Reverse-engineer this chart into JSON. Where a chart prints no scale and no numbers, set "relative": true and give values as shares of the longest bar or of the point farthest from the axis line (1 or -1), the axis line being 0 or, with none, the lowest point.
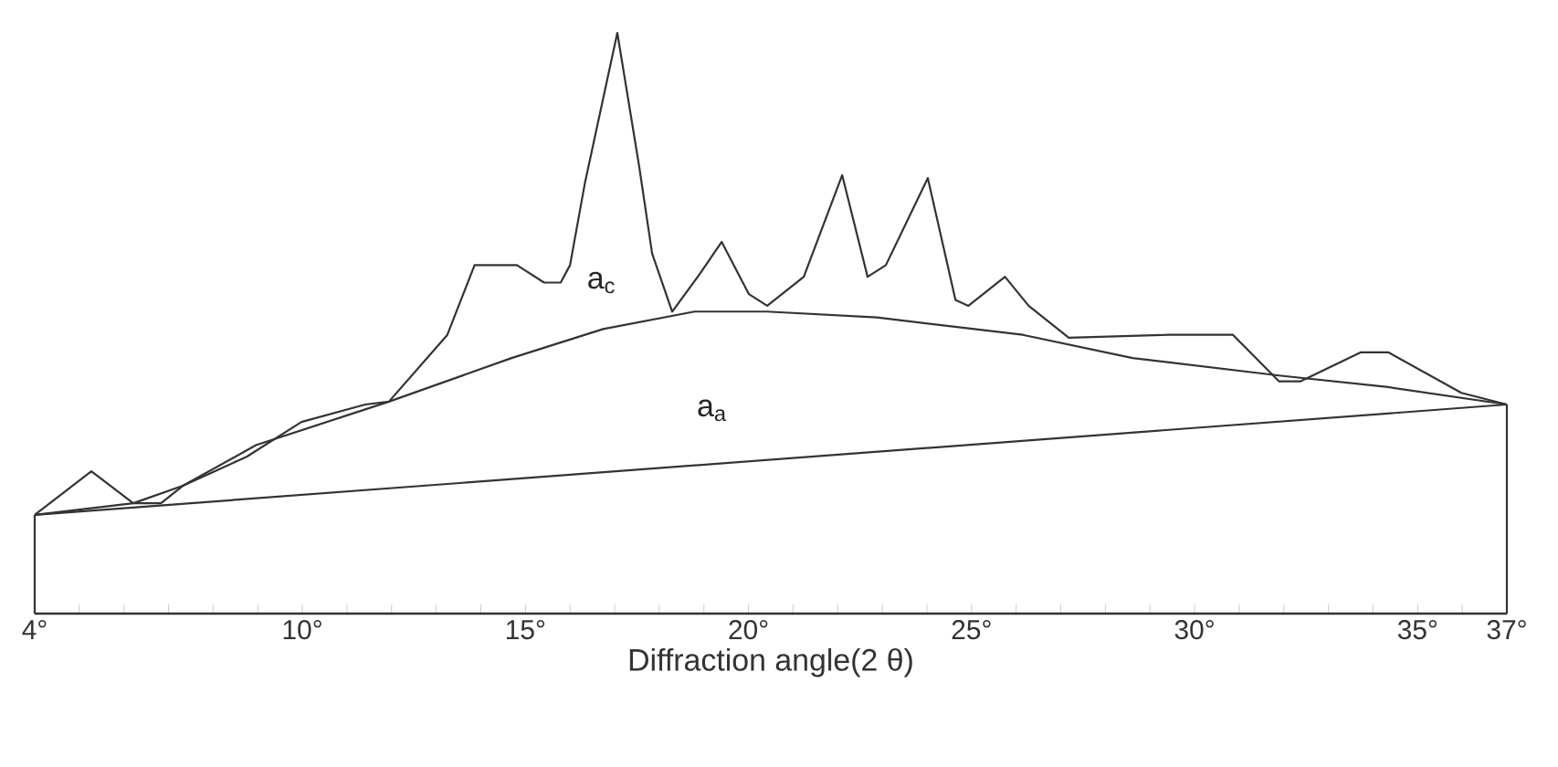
{
  "chart_data": {
    "type": "line",
    "xlabel": "Diffraction angle(2 θ)",
    "relative": true,
    "xlim": [
      4,
      37
    ],
    "xticks": [
      {
        "value": 4,
        "label": "4°"
      },
      {
        "value": 5,
        "label": null
      },
      {
        "value": 6,
        "label": null
      },
      {
        "value": 7,
        "label": null
      },
      {
        "value": 8,
        "label": null
      },
      {
        "value": 9,
        "label": null
      },
      {
        "value": 10,
        "label": "10°"
      },
      {
        "value": 11,
        "label": null
      },
      {
        "value": 12,
        "label": null
      },
      {
        "value": 13,
        "label": null
      },
      {
        "value": 14,
        "label": null
      },
      {
        "value": 15,
        "label": "15°"
      },
      {
        "value": 16,
        "label": null
      },
      {
        "value": 17,
        "label": null
      },
      {
        "value": 18,
        "label": null
      },
      {
        "value": 19,
        "label": null
      },
      {
        "value": 20,
        "label": "20°"
      },
      {
        "value": 21,
        "label": null
      },
      {
        "value": 22,
        "label": null
      },
      {
        "value": 23,
        "label": null
      },
      {
        "value": 24,
        "label": null
      },
      {
        "value": 25,
        "label": "25°"
      },
      {
        "value": 26,
        "label": null
      },
      {
        "value": 27,
        "label": null
      },
      {
        "value": 28,
        "label": null
      },
      {
        "value": 29,
        "label": null
      },
      {
        "value": 30,
        "label": "30°"
      },
      {
        "value": 31,
        "label": null
      },
      {
        "value": 32,
        "label": null
      },
      {
        "value": 33,
        "label": null
      },
      {
        "value": 34,
        "label": null
      },
      {
        "value": 35,
        "label": "35°"
      },
      {
        "value": 36,
        "label": null
      },
      {
        "value": 37,
        "label": "37°"
      }
    ],
    "series": [
      {
        "color": "#333333",
        "x": [
          4.0,
          5.27,
          6.21,
          6.83,
          7.32,
          8.75,
          9.98,
          11.41,
          11.94,
          13.25,
          13.86,
          14.81,
          15.42,
          15.79,
          16.0,
          16.33,
          17.06,
          17.55,
          17.84,
          18.29,
          18.91,
          19.4,
          20.01,
          20.42,
          21.24,
          22.1,
          22.67,
          23.08,
          24.02,
          24.64,
          24.93,
          25.75,
          26.28,
          27.18,
          29.43,
          30.86,
          31.89,
          32.38,
          33.73,
          34.34,
          35.98,
          37.0
        ],
        "values": [
          0.17,
          0.245,
          0.19,
          0.19,
          0.22,
          0.27,
          0.33,
          0.36,
          0.365,
          0.48,
          0.6,
          0.6,
          0.57,
          0.57,
          0.6,
          0.74,
          1.0,
          0.77,
          0.62,
          0.52,
          0.585,
          0.64,
          0.55,
          0.53,
          0.58,
          0.755,
          0.58,
          0.6,
          0.75,
          0.54,
          0.53,
          0.58,
          0.53,
          0.475,
          0.48,
          0.48,
          0.4,
          0.4,
          0.45,
          0.45,
          0.38,
          0.36
        ]
      },
      {
        "color": "#333333",
        "x": [
          4.0,
          6.21,
          7.32,
          8.96,
          11.94,
          14.69,
          16.74,
          18.79,
          20.42,
          22.88,
          26.15,
          28.61,
          31.89,
          34.34,
          37.0
        ],
        "values": [
          0.17,
          0.19,
          0.22,
          0.29,
          0.365,
          0.44,
          0.49,
          0.52,
          0.52,
          0.51,
          0.48,
          0.44,
          0.41,
          0.39,
          0.36
        ]
      },
      {
        "color": "#333333",
        "x": [
          4.0,
          37.0
        ],
        "values": [
          0.17,
          0.36
        ]
      }
    ],
    "annotations": [
      "a$_{c}$",
      "a$_{a}$"
    ]
  }
}
